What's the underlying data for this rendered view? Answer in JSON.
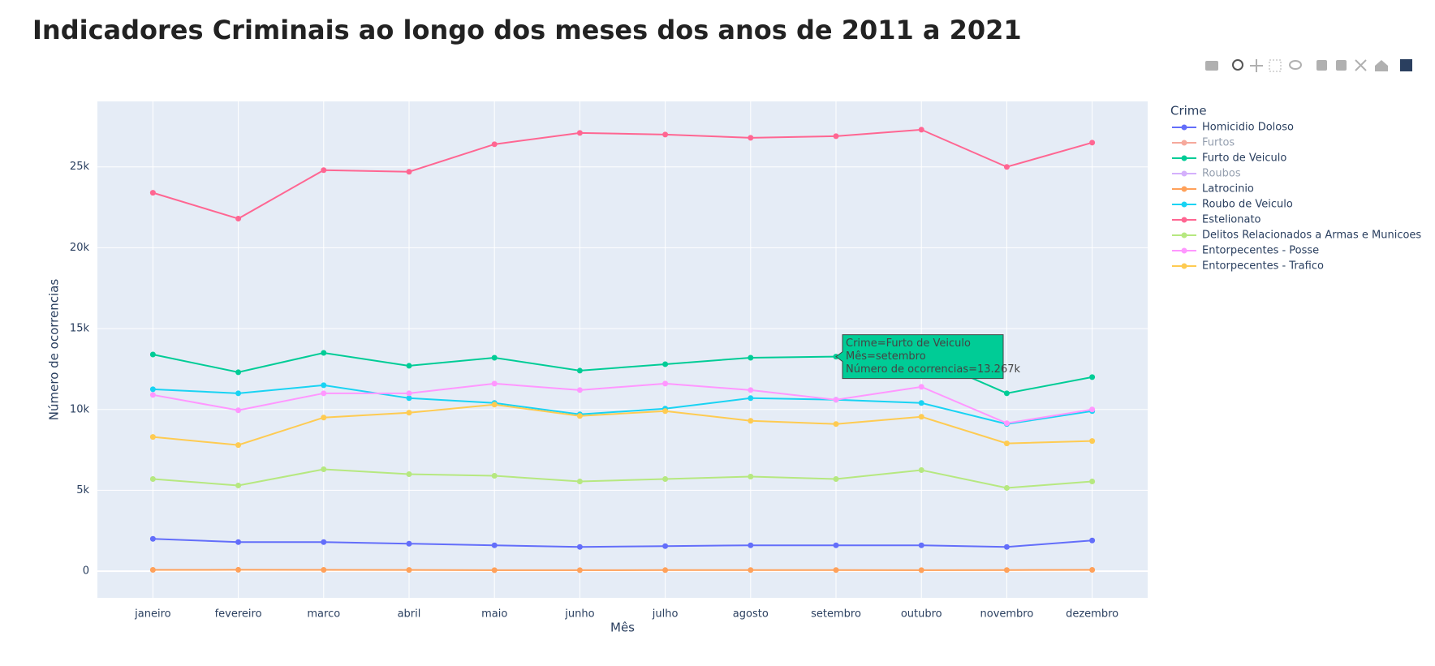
{
  "chart_data": {
    "type": "line",
    "title": "Indicadores Criminais ao longo dos meses dos anos de 2011 a 2021",
    "x_label": "Mês",
    "y_label": "Número de ocorrencias",
    "legend_title": "Crime",
    "legend": "right",
    "grid": true,
    "categories": [
      "janeiro",
      "fevereiro",
      "marco",
      "abril",
      "maio",
      "junho",
      "julho",
      "agosto",
      "setembro",
      "outubro",
      "novembro",
      "dezembro"
    ],
    "ylim": [
      -1650,
      29050
    ],
    "yticks": [
      0,
      {
        "value": 5000,
        "label": "5k"
      },
      {
        "value": 10000,
        "label": "10k"
      },
      {
        "value": 15000,
        "label": "15k"
      },
      {
        "value": 20000,
        "label": "20k"
      },
      {
        "value": 25000,
        "label": "25k"
      }
    ],
    "series": [
      {
        "name": "Homicidio Doloso",
        "color": "#636efa",
        "visible": true,
        "values": [
          2000,
          1800,
          1800,
          1700,
          1600,
          1500,
          1550,
          1600,
          1600,
          1600,
          1500,
          1900
        ]
      },
      {
        "name": "Furtos",
        "color": "#EF553B",
        "visible": false,
        "values": [
          null,
          null,
          null,
          null,
          null,
          null,
          null,
          null,
          null,
          null,
          null,
          null
        ]
      },
      {
        "name": "Furto de Veiculo",
        "color": "#00cc96",
        "visible": true,
        "values": [
          13400,
          12300,
          13500,
          12700,
          13200,
          12400,
          12800,
          13200,
          13267,
          13300,
          11000,
          12000
        ]
      },
      {
        "name": "Roubos",
        "color": "#ab63fa",
        "visible": false,
        "values": [
          null,
          null,
          null,
          null,
          null,
          null,
          null,
          null,
          null,
          null,
          null,
          null
        ]
      },
      {
        "name": "Latrocinio",
        "color": "#FFA15A",
        "visible": true,
        "values": [
          80,
          85,
          80,
          75,
          60,
          60,
          65,
          70,
          70,
          60,
          70,
          80
        ]
      },
      {
        "name": "Roubo de Veiculo",
        "color": "#19d3f3",
        "visible": true,
        "values": [
          11250,
          11000,
          11500,
          10700,
          10400,
          9700,
          10050,
          10700,
          10600,
          10400,
          9100,
          9900
        ]
      },
      {
        "name": "Estelionato",
        "color": "#FF6692",
        "visible": true,
        "values": [
          23400,
          21800,
          24800,
          24700,
          26400,
          27100,
          27000,
          26800,
          26900,
          27300,
          25000,
          26500
        ]
      },
      {
        "name": "Delitos Relacionados a Armas e Municoes",
        "color": "#B6E880",
        "visible": true,
        "values": [
          5700,
          5300,
          6300,
          6000,
          5900,
          5550,
          5700,
          5850,
          5700,
          6250,
          5150,
          5550
        ]
      },
      {
        "name": "Entorpecentes - Posse",
        "color": "#FF97FF",
        "visible": true,
        "values": [
          10900,
          9950,
          11000,
          11000,
          11600,
          11200,
          11600,
          11200,
          10600,
          11400,
          9150,
          10000
        ]
      },
      {
        "name": "Entorpecentes - Trafico",
        "color": "#FECB52",
        "visible": true,
        "values": [
          8300,
          7800,
          9500,
          9800,
          10300,
          9600,
          9900,
          9300,
          9100,
          9550,
          7900,
          8050
        ]
      }
    ],
    "hover": {
      "series": 2,
      "index": 8,
      "lines": [
        "Crime=Furto de Veiculo",
        "Mês=setembro",
        "Número de ocorrencias=13.267k"
      ]
    }
  }
}
